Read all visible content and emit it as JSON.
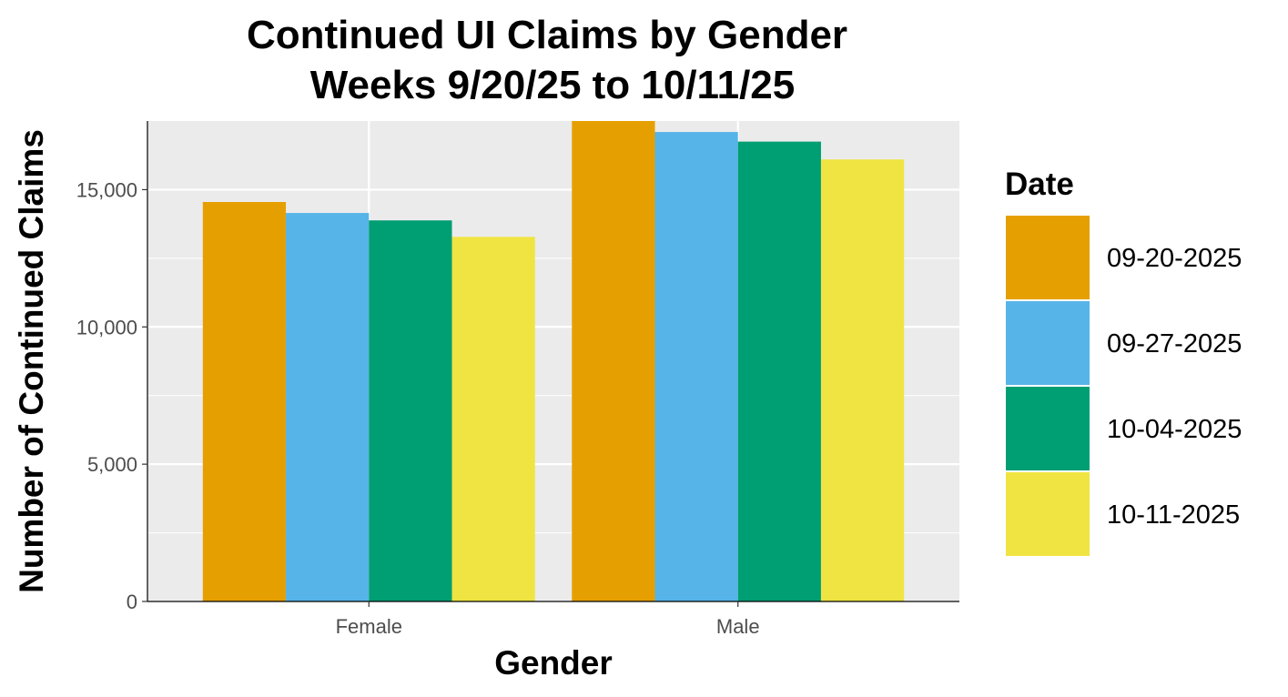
{
  "chart_data": {
    "type": "bar",
    "title": "Continued UI Claims by Gender",
    "subtitle": "Weeks  9/20/25 to 10/11/25",
    "xlabel": "Gender",
    "ylabel": "Number of Continued Claims",
    "categories": [
      "Female",
      "Male"
    ],
    "ylim": [
      0,
      17500
    ],
    "yticks": [
      0,
      5000,
      10000,
      15000
    ],
    "ytick_labels": [
      "0",
      "5,000",
      "10,000",
      "15,000"
    ],
    "grid": true,
    "legend": {
      "title": "Date",
      "position": "right"
    },
    "series": [
      {
        "name": "09-20-2025",
        "color": "#E69F00",
        "values": [
          14550,
          17600
        ]
      },
      {
        "name": "09-27-2025",
        "color": "#56B4E9",
        "values": [
          14150,
          17100
        ]
      },
      {
        "name": "10-04-2025",
        "color": "#009E73",
        "values": [
          13880,
          16750
        ]
      },
      {
        "name": "10-11-2025",
        "color": "#F0E442",
        "values": [
          13280,
          16100
        ]
      }
    ]
  }
}
